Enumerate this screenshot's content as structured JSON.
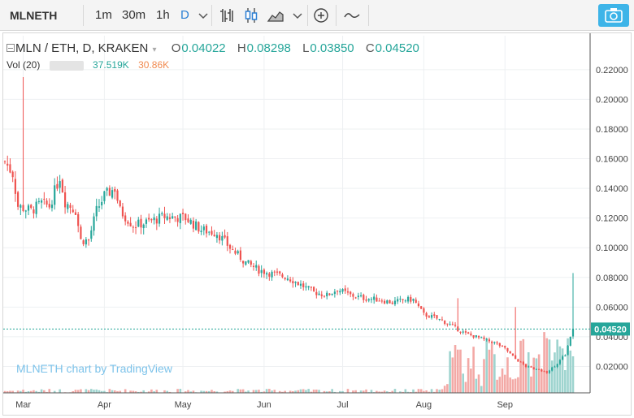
{
  "toolbar": {
    "symbol": "MLNETH",
    "intervals": [
      "1m",
      "30m",
      "1h",
      "D"
    ],
    "active_interval": "D",
    "icons": [
      "chevron-down-icon",
      "bar-style-icon",
      "candles-icon",
      "area-chart-icon",
      "chevron-down-icon",
      "add-indicator-icon",
      "compare-line-icon",
      "camera-icon"
    ]
  },
  "legend": {
    "title": "MLN / ETH, D, KRAKEN",
    "o_label": "O",
    "o": "0.04022",
    "h_label": "H",
    "h": "0.08298",
    "l_label": "L",
    "l": "0.03850",
    "c_label": "C",
    "c": "0.04520",
    "vol_label": "Vol (20)",
    "vol_value": "37.519K",
    "vol_ma": "30.86K"
  },
  "watermark": "MLNETH chart by TradingView",
  "last_price_label": "0.04520",
  "colors": {
    "up": "#26a69a",
    "down": "#ef5350",
    "up_vol": "#9ed4cf",
    "down_vol": "#f3a9a6",
    "accent": "#2a7fd4"
  },
  "chart_data": {
    "type": "candlestick",
    "yticks": [
      "0.02000",
      "0.04000",
      "0.06000",
      "0.08000",
      "0.10000",
      "0.12000",
      "0.14000",
      "0.16000",
      "0.18000",
      "0.20000",
      "0.22000"
    ],
    "ylim": [
      0.0,
      0.2265
    ],
    "xticks": [
      "Mar",
      "Apr",
      "May",
      "Jun",
      "Jul",
      "Aug",
      "Sep"
    ],
    "last_price": 0.0452,
    "anchors": [
      [
        0,
        0.158
      ],
      [
        3,
        0.15
      ],
      [
        5,
        0.128
      ],
      [
        10,
        0.125
      ],
      [
        14,
        0.13
      ],
      [
        17,
        0.128
      ],
      [
        21,
        0.148
      ],
      [
        23,
        0.131
      ],
      [
        27,
        0.125
      ],
      [
        29,
        0.105
      ],
      [
        32,
        0.105
      ],
      [
        35,
        0.125
      ],
      [
        38,
        0.135
      ],
      [
        42,
        0.14
      ],
      [
        44,
        0.125
      ],
      [
        49,
        0.115
      ],
      [
        54,
        0.117
      ],
      [
        61,
        0.121
      ],
      [
        69,
        0.12
      ],
      [
        75,
        0.112
      ],
      [
        81,
        0.11
      ],
      [
        86,
        0.1
      ],
      [
        92,
        0.09
      ],
      [
        97,
        0.085
      ],
      [
        103,
        0.082
      ],
      [
        108,
        0.08
      ],
      [
        113,
        0.075
      ],
      [
        118,
        0.07
      ],
      [
        123,
        0.068
      ],
      [
        127,
        0.072
      ],
      [
        132,
        0.068
      ],
      [
        137,
        0.066
      ],
      [
        143,
        0.065
      ],
      [
        148,
        0.063
      ],
      [
        153,
        0.065
      ],
      [
        156,
        0.065
      ],
      [
        160,
        0.055
      ],
      [
        164,
        0.053
      ],
      [
        168,
        0.05
      ],
      [
        172,
        0.046
      ],
      [
        176,
        0.042
      ],
      [
        180,
        0.04
      ],
      [
        183,
        0.038
      ],
      [
        187,
        0.036
      ],
      [
        191,
        0.032
      ],
      [
        195,
        0.025
      ],
      [
        199,
        0.02
      ],
      [
        203,
        0.018
      ],
      [
        207,
        0.016
      ],
      [
        211,
        0.022
      ],
      [
        214,
        0.028
      ],
      [
        217,
        0.045
      ]
    ]
  }
}
